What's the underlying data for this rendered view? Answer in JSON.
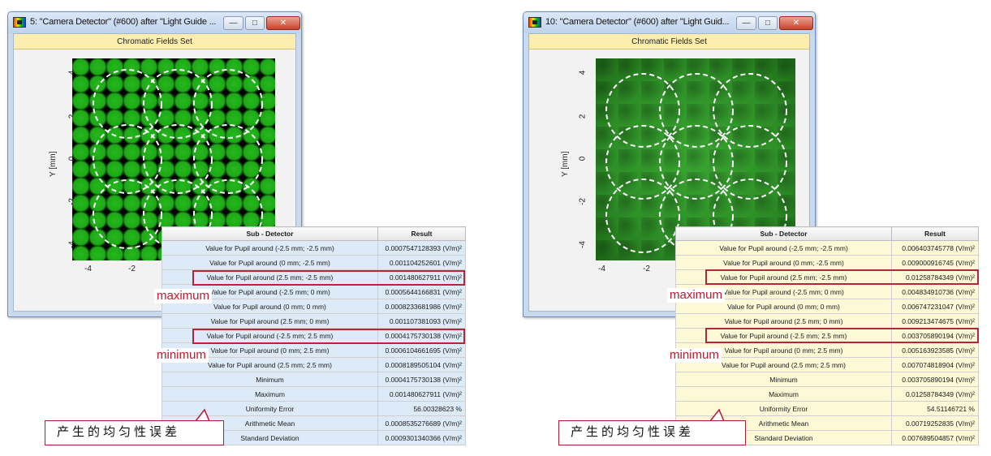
{
  "panels": [
    {
      "window_title": "5: \"Camera Detector\" (#600) after \"Light Guide ...",
      "subtitle": "Chromatic Fields Set",
      "y_axis_label": "Y [mm]",
      "y_ticks": [
        "4",
        "2",
        "0",
        "-2",
        "-4"
      ],
      "x_ticks": [
        "-4",
        "-2"
      ],
      "table": {
        "header_subdetector": "Sub - Detector",
        "header_result": "Result",
        "rows": [
          {
            "label": "Value for Pupil around (-2.5 mm; -2.5 mm)",
            "value": "0.0007547128393 (V/m)²"
          },
          {
            "label": "Value for Pupil around (0 mm; -2.5 mm)",
            "value": "0.001104252601 (V/m)²"
          },
          {
            "label": "Value for Pupil around (2.5 mm; -2.5 mm)",
            "value": "0.001480627911 (V/m)²"
          },
          {
            "label": "Value for Pupil around (-2.5 mm; 0 mm)",
            "value": "0.0005644166831 (V/m)²"
          },
          {
            "label": "Value for Pupil around (0 mm; 0 mm)",
            "value": "0.0008233681986 (V/m)²"
          },
          {
            "label": "Value for Pupil around (2.5 mm; 0 mm)",
            "value": "0.001107381093 (V/m)²"
          },
          {
            "label": "Value for Pupil around (-2.5 mm; 2.5 mm)",
            "value": "0.0004175730138 (V/m)²"
          },
          {
            "label": "Value for Pupil around (0 mm; 2.5 mm)",
            "value": "0.0006104661695 (V/m)²"
          },
          {
            "label": "Value for Pupil around (2.5 mm; 2.5 mm)",
            "value": "0.0008189505104 (V/m)²"
          },
          {
            "label": "Minimum",
            "value": "0.0004175730138 (V/m)²"
          },
          {
            "label": "Maximum",
            "value": "0.001480627911 (V/m)²"
          },
          {
            "label": "Uniformity Error",
            "value": "56.00328623 %"
          },
          {
            "label": "Arithmetic Mean",
            "value": "0.0008535276689 (V/m)²"
          },
          {
            "label": "Standard Deviation",
            "value": "0.0009301340366 (V/m)²"
          }
        ]
      }
    },
    {
      "window_title": "10: \"Camera Detector\" (#600) after \"Light Guid...",
      "subtitle": "Chromatic Fields Set",
      "y_axis_label": "Y [mm]",
      "y_ticks": [
        "4",
        "2",
        "0",
        "-2",
        "-4"
      ],
      "x_ticks": [
        "-4",
        "-2"
      ],
      "table": {
        "header_subdetector": "Sub - Detector",
        "header_result": "Result",
        "rows": [
          {
            "label": "Value for Pupil around (-2.5 mm; -2.5 mm)",
            "value": "0.006403745778 (V/m)²"
          },
          {
            "label": "Value for Pupil around (0 mm; -2.5 mm)",
            "value": "0.009000916745 (V/m)²"
          },
          {
            "label": "Value for Pupil around (2.5 mm; -2.5 mm)",
            "value": "0.01258784349 (V/m)²"
          },
          {
            "label": "Value for Pupil around (-2.5 mm; 0 mm)",
            "value": "0.004834910736 (V/m)²"
          },
          {
            "label": "Value for Pupil around (0 mm; 0 mm)",
            "value": "0.006747231047 (V/m)²"
          },
          {
            "label": "Value for Pupil around (2.5 mm; 0 mm)",
            "value": "0.009213474675 (V/m)²"
          },
          {
            "label": "Value for Pupil around (-2.5 mm; 2.5 mm)",
            "value": "0.003705890194 (V/m)²"
          },
          {
            "label": "Value for Pupil around (0 mm; 2.5 mm)",
            "value": "0.005163923585 (V/m)²"
          },
          {
            "label": "Value for Pupil around (2.5 mm; 2.5 mm)",
            "value": "0.007074818904 (V/m)²"
          },
          {
            "label": "Minimum",
            "value": "0.003705890194 (V/m)²"
          },
          {
            "label": "Maximum",
            "value": "0.01258784349 (V/m)²"
          },
          {
            "label": "Uniformity Error",
            "value": "54.51146721 %"
          },
          {
            "label": "Arithmetic Mean",
            "value": "0.00719252835 (V/m)²"
          },
          {
            "label": "Standard Deviation",
            "value": "0.007689504857 (V/m)²"
          }
        ]
      }
    }
  ],
  "annotations": {
    "maximum_label": "maximum",
    "minimum_label": "minimum",
    "callout_text": "产生的均匀性误差"
  }
}
